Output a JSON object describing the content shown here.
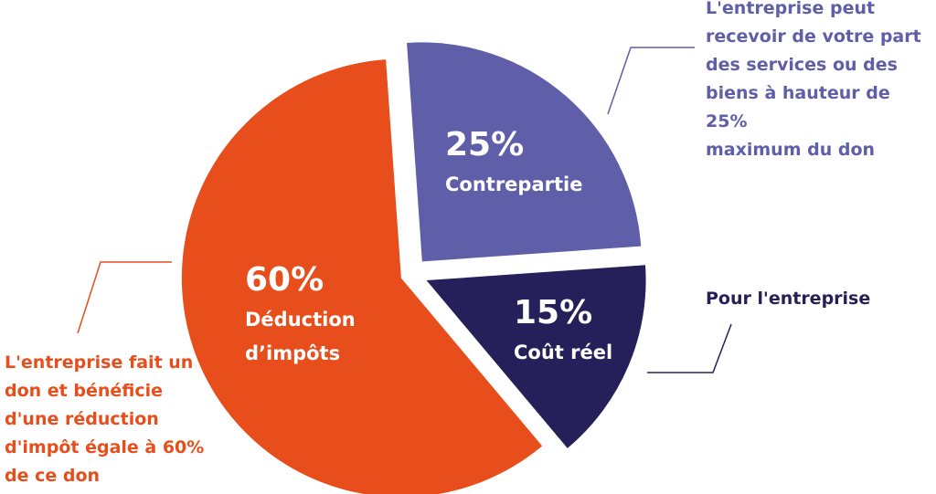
{
  "chart_data": {
    "type": "pie",
    "categories": [
      "Contrepartie",
      "Coût réel",
      "Déduction d’impôts"
    ],
    "values": [
      25,
      15,
      60
    ],
    "value_labels": [
      "25%",
      "15%",
      "60%"
    ],
    "colors": [
      "#5f5ea8",
      "#25205a",
      "#e84e1b"
    ],
    "annotations": [
      "L'entreprise peut\nrecevoir de votre part\ndes services ou des\nbiens à hauteur de 25%\nmaximum du don",
      "Pour l'entreprise",
      "L'entreprise fait un\ndon et bénéficie\nd'une réduction\nd'impôt égale à 60%\nde ce don"
    ]
  }
}
